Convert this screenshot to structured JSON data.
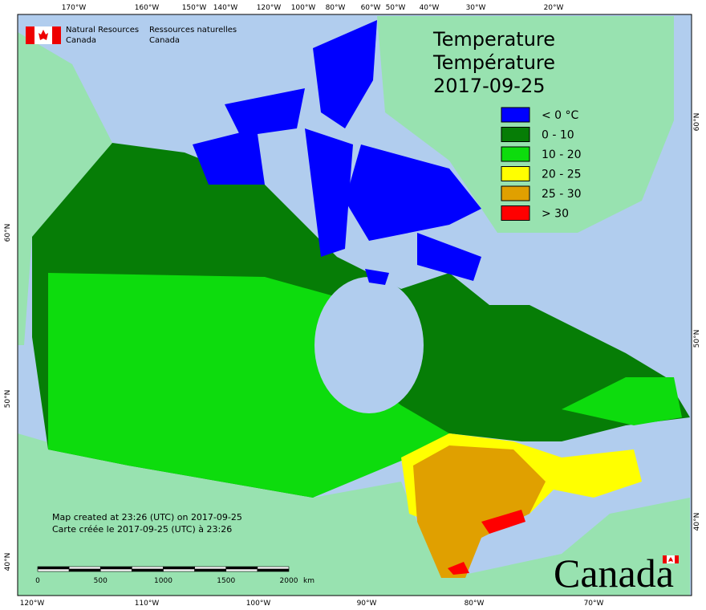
{
  "header": {
    "agency_en": [
      "Natural Resources",
      "Canada"
    ],
    "agency_fr": [
      "Ressources naturelles",
      "Canada"
    ]
  },
  "title": [
    "Temperature",
    "Température",
    "2017-09-25"
  ],
  "legend": [
    {
      "label": "< 0 °C",
      "color": "#0000ff"
    },
    {
      "label": "0 - 10",
      "color": "#067d06"
    },
    {
      "label": "10 - 20",
      "color": "#0ddc0d"
    },
    {
      "label": "20 - 25",
      "color": "#ffff00"
    },
    {
      "label": "25 - 30",
      "color": "#e0a000"
    },
    {
      "label": "> 30",
      "color": "#ff0000"
    }
  ],
  "note": [
    "Map created at 23:26 (UTC) on 2017-09-25",
    "Carte créée le 2017-09-25 (UTC) à 23:26"
  ],
  "scale_bar": {
    "labels": [
      "0",
      "500",
      "1000",
      "1500",
      "2000"
    ],
    "unit": "km"
  },
  "graticule": {
    "top": [
      "170°W",
      "160°W",
      "150°W",
      "140°W",
      "120°W",
      "100°W",
      "80°W",
      "60°W",
      "50°W",
      "40°W",
      "30°W",
      "20°W"
    ],
    "bottom": [
      "120°W",
      "110°W",
      "100°W",
      "90°W",
      "80°W",
      "70°W"
    ],
    "left": [
      "60°N",
      "50°N",
      "40°N"
    ],
    "right": [
      "60°N",
      "50°N",
      "40°N"
    ]
  },
  "wordmark": "Canada"
}
